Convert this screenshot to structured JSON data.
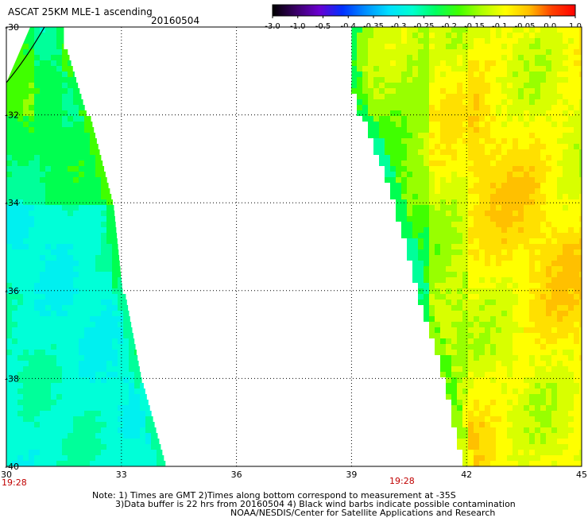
{
  "header": {
    "title": "ASCAT 25KM MLE-1 ascending",
    "date": "20160504"
  },
  "colorbar": {
    "ticks": [
      "-3.0",
      "-1.0",
      "-0.5",
      "-0.4",
      "-0.35",
      "-0.3",
      "-0.25",
      "-0.2",
      "-0.15",
      "-0.1",
      "-0.05",
      "0.0",
      "1.0"
    ],
    "colors": [
      "#000000",
      "#3a0066",
      "#6a00d0",
      "#0030ff",
      "#0090ff",
      "#00e0ff",
      "#00ffd0",
      "#00ff60",
      "#40ff00",
      "#b0ff00",
      "#ffff00",
      "#ffc000",
      "#ff4000",
      "#ff0000"
    ]
  },
  "map": {
    "x_ticks": [
      "30",
      "33",
      "36",
      "39",
      "42",
      "45"
    ],
    "y_ticks": [
      "-30",
      "-32",
      "-34",
      "-36",
      "-38",
      "-40"
    ],
    "time_labels": [
      "19:28",
      "19:28"
    ],
    "left_swath": "west pass, mostly cyan/green values (-0.3 to -0.15)",
    "right_swath": "east pass, mostly green/yellow/orange values (-0.15 to 0.0)"
  },
  "notes": [
    "Note: 1) Times are GMT 2)Times along bottom correspond to measurement at -35S",
    "3)Data buffer is 22 hrs from 20160504 4) Black wind barbs indicate possible contamination",
    "NOAA/NESDIS/Center for Satellite Applications and Research"
  ]
}
